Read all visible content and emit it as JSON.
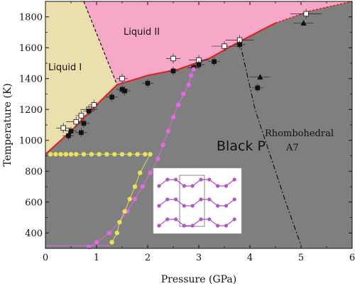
{
  "chart_data": {
    "type": "scatter",
    "xlabel": "Pressure (GPa)",
    "ylabel": "Temperature (K)",
    "xlim": [
      0,
      6
    ],
    "ylim": [
      300,
      1900
    ],
    "x_ticks": [
      "0",
      "1",
      "2",
      "3",
      "4",
      "5",
      "6"
    ],
    "y_ticks": [
      "400",
      "600",
      "800",
      "1000",
      "1200",
      "1400",
      "1600",
      "1800"
    ],
    "grid": false,
    "regions": {
      "liquid_i": "Liquid I",
      "liquid_ii": "Liquid II",
      "black_p": "Black P",
      "rhombohedral_line1": "Rhombohedral",
      "rhombohedral_line2": "A7"
    },
    "colors": {
      "black_p_fill": "#7f7f7f",
      "liquid_i_fill": "#ecdfae",
      "liquid_ii_fill": "#f7a8c8",
      "melting_line": "#e01e1e",
      "magenta_series": "#e36ae3",
      "yellow_series": "#e8e35a",
      "inset_atoms": "#b056c8"
    },
    "boundaries": {
      "melting_curve": [
        [
          0,
          910
        ],
        [
          0.5,
          1060
        ],
        [
          1.0,
          1230
        ],
        [
          1.4,
          1360
        ],
        [
          2.0,
          1420
        ],
        [
          2.6,
          1460
        ],
        [
          3.2,
          1530
        ],
        [
          3.8,
          1640
        ],
        [
          4.5,
          1760
        ],
        [
          5.2,
          1840
        ],
        [
          6.0,
          1900
        ]
      ],
      "liquid_i_ii_boundary": [
        [
          0.75,
          1900
        ],
        [
          1.4,
          1360
        ]
      ],
      "a7_boundary": [
        [
          3.8,
          1640
        ],
        [
          4.1,
          1200
        ],
        [
          4.4,
          900
        ],
        [
          4.7,
          600
        ],
        [
          5.0,
          320
        ]
      ]
    },
    "series": [
      {
        "marker": "open-square",
        "x": [
          0.35,
          0.6,
          0.7,
          0.85,
          0.95,
          1.5,
          2.5,
          3.0,
          3.5,
          3.8,
          5.1
        ],
        "y": [
          1080,
          1120,
          1160,
          1200,
          1230,
          1400,
          1530,
          1520,
          1610,
          1650,
          1820
        ]
      },
      {
        "marker": "filled-square",
        "x": [
          0.45,
          0.5,
          0.7,
          0.75,
          0.85,
          1.3,
          1.5,
          1.55,
          2.0,
          2.5,
          2.9,
          3.0,
          3.3,
          3.8,
          4.15
        ],
        "y": [
          1030,
          1060,
          1050,
          1110,
          1190,
          1280,
          1330,
          1320,
          1370,
          1450,
          1470,
          1490,
          1510,
          1620,
          1340
        ]
      },
      {
        "marker": "filled-triangle",
        "x": [
          4.2,
          5.05
        ],
        "y": [
          1410,
          1760
        ]
      },
      {
        "marker": "magenta-dot",
        "x": [
          0.85,
          1.0,
          1.25,
          1.45,
          1.6,
          1.75,
          1.9,
          2.05,
          2.2,
          2.3,
          2.4,
          2.5,
          2.6,
          2.7,
          2.8,
          2.85,
          2.9
        ],
        "y": [
          310,
          340,
          400,
          470,
          540,
          620,
          700,
          790,
          880,
          970,
          1060,
          1150,
          1230,
          1300,
          1360,
          1420,
          1460
        ]
      },
      {
        "marker": "yellow-dot",
        "x": [
          0.1,
          0.2,
          0.3,
          0.4,
          0.5,
          0.6,
          0.75,
          0.9,
          1.05,
          1.2,
          1.35,
          1.5,
          1.65,
          1.8,
          1.95,
          2.05,
          1.85,
          1.75,
          1.65,
          1.55,
          1.45,
          1.4,
          1.3
        ],
        "y": [
          910,
          910,
          910,
          910,
          910,
          910,
          910,
          910,
          910,
          910,
          910,
          910,
          910,
          910,
          910,
          910,
          790,
          700,
          620,
          540,
          470,
          400,
          340
        ]
      }
    ]
  }
}
